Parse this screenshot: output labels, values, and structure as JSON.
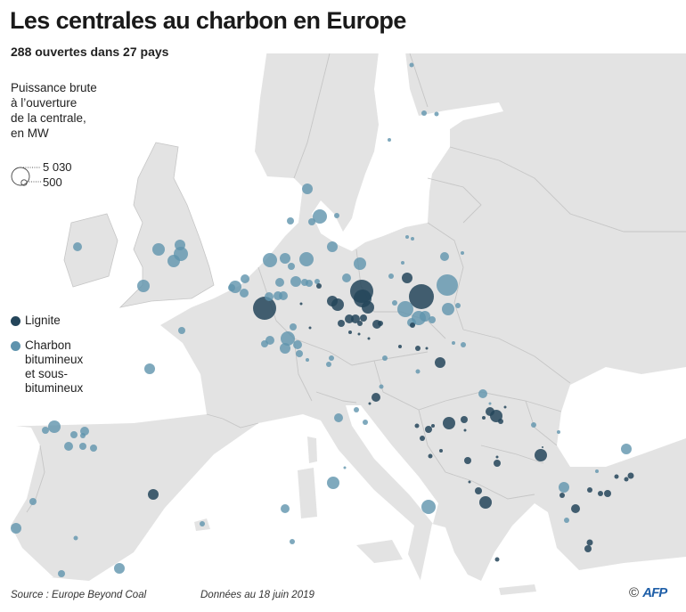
{
  "header": {
    "title": "Les centrales au charbon en Europe",
    "subtitle": "288 ouvertes dans 27 pays"
  },
  "legend": {
    "size_title_lines": [
      "Puissance brute",
      "à l’ouverture",
      "de la centrale,",
      "en MW"
    ],
    "size_large": "5 030",
    "size_small": "500",
    "types": [
      {
        "label_lines": [
          "Lignite"
        ],
        "color": "#24455a"
      },
      {
        "label_lines": [
          "Charbon",
          "bitumineux",
          "et sous-",
          "bitumineux"
        ],
        "color": "#5f93ad"
      }
    ]
  },
  "colors": {
    "land": "#e3e3e3",
    "border": "#c6c6c6",
    "sea": "#ffffff"
  },
  "footer": {
    "source": "Source : Europe Beyond Coal",
    "date": "Données au 18 juin 2019",
    "copyright": "©",
    "agency": "AFP"
  }
}
